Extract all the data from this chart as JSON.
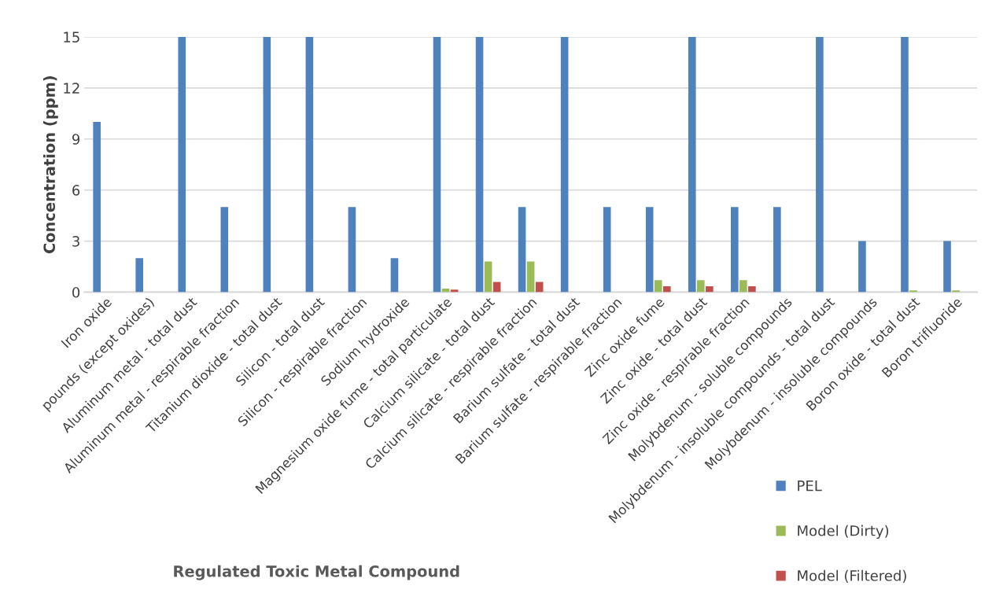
{
  "chart_data": {
    "type": "bar",
    "xlabel": "Regulated Toxic Metal Compound",
    "ylabel": "Concentration (ppm)",
    "categories": [
      "Iron oxide",
      "pounds (except oxides)",
      "Aluminum metal - total dust",
      "Aluminum metal - respirable fraction",
      "Titanium dioxide - total dust",
      "Silicon - total dust",
      "Silicon - respirable fraction",
      "Sodium hydroxide",
      "Magnesium oxide fume - total particulate",
      "Calcium silicate - total dust",
      "Calcium silicate - respirable fraction",
      "Barium sulfate - total dust",
      "Barium sulfate - respirable fraction",
      "Zinc oxide fume",
      "Zinc oxide - total dust",
      "Zinc oxide - respirable fraction",
      "Molybdenum - soluble compounds",
      "Molybdenum - insoluble compounds - total dust",
      "Molybdenum - insoluble compounds",
      "Boron oxide - total dust",
      "Boron trifluoride"
    ],
    "series": [
      {
        "name": "PEL",
        "color": "#4f81bd",
        "values": [
          10,
          2,
          15,
          5,
          15,
          15,
          5,
          2,
          15,
          15,
          5,
          15,
          5,
          5,
          15,
          5,
          5,
          15,
          3,
          15,
          3
        ]
      },
      {
        "name": "Model (Dirty)",
        "color": "#9bbb59",
        "values": [
          0,
          0,
          0,
          0,
          0,
          0,
          0,
          0,
          0.2,
          1.8,
          1.8,
          0,
          0,
          0.7,
          0.7,
          0.7,
          0,
          0,
          0,
          0.1,
          0.1
        ]
      },
      {
        "name": "Model (Filtered)",
        "color": "#c0504d",
        "values": [
          0,
          0,
          0,
          0,
          0,
          0,
          0,
          0,
          0.15,
          0.6,
          0.6,
          0,
          0,
          0.35,
          0.35,
          0.35,
          0,
          0,
          0,
          0,
          0
        ]
      }
    ],
    "ylim": [
      0,
      15
    ],
    "yticks": [
      0,
      3,
      6,
      9,
      12,
      15
    ],
    "grid": "y",
    "legend": "bottom right"
  }
}
